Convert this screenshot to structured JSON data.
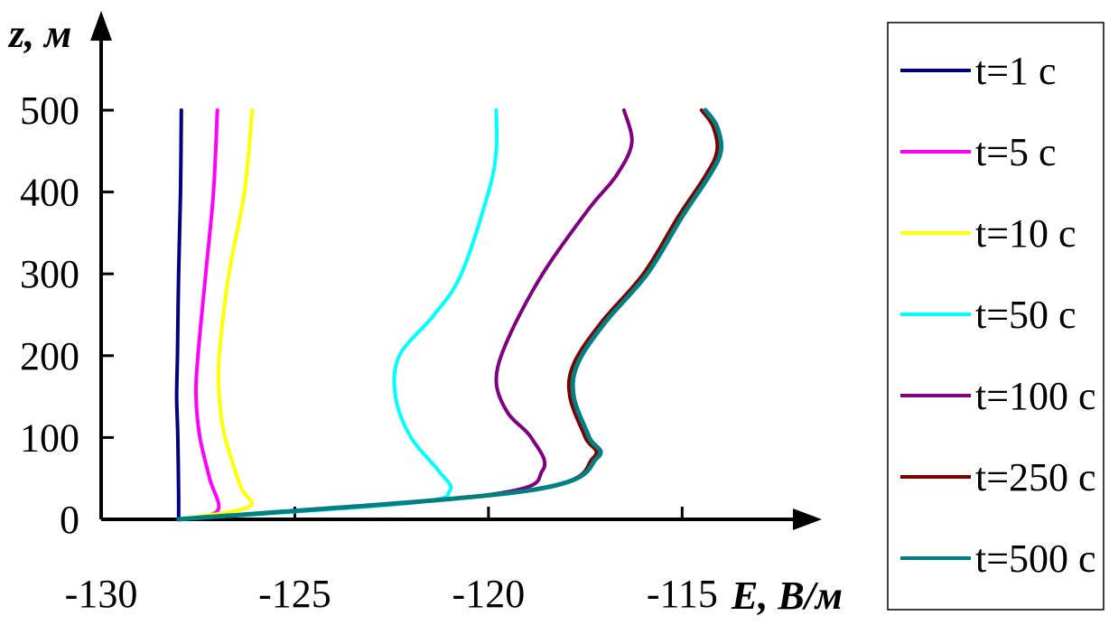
{
  "chart_data": {
    "type": "line",
    "title": "",
    "xlabel": "E, В/м",
    "ylabel": "z, м",
    "xlim": [
      -130,
      -112
    ],
    "ylim": [
      0,
      500
    ],
    "xticks": [
      "-130",
      "-125",
      "-120",
      "-115"
    ],
    "yticks": [
      "0",
      "100",
      "200",
      "300",
      "400",
      "500"
    ],
    "grid": false,
    "legend_position": "right",
    "series": [
      {
        "name": "t=1 с",
        "color": "#000080",
        "points": [
          [
            -128.0,
            0
          ],
          [
            -128.0,
            30
          ],
          [
            -128.02,
            100
          ],
          [
            -128.05,
            150
          ],
          [
            -128.03,
            200
          ],
          [
            -128.0,
            300
          ],
          [
            -127.95,
            400
          ],
          [
            -127.93,
            500
          ]
        ]
      },
      {
        "name": "t=5 с",
        "color": "#ff00ff",
        "points": [
          [
            -128.0,
            0
          ],
          [
            -127.0,
            10
          ],
          [
            -127.2,
            50
          ],
          [
            -127.45,
            100
          ],
          [
            -127.55,
            150
          ],
          [
            -127.5,
            200
          ],
          [
            -127.3,
            300
          ],
          [
            -127.1,
            400
          ],
          [
            -127.0,
            500
          ]
        ]
      },
      {
        "name": "t=10 с",
        "color": "#ffff00",
        "points": [
          [
            -128.0,
            0
          ],
          [
            -126.2,
            15
          ],
          [
            -126.4,
            40
          ],
          [
            -126.8,
            100
          ],
          [
            -126.95,
            150
          ],
          [
            -126.95,
            200
          ],
          [
            -126.7,
            300
          ],
          [
            -126.3,
            400
          ],
          [
            -126.1,
            500
          ]
        ]
      },
      {
        "name": "t=50 с",
        "color": "#00ffff",
        "points": [
          [
            -128.0,
            0
          ],
          [
            -122.0,
            20
          ],
          [
            -121.0,
            35
          ],
          [
            -121.3,
            60
          ],
          [
            -122.0,
            100
          ],
          [
            -122.4,
            150
          ],
          [
            -122.3,
            200
          ],
          [
            -121.4,
            250
          ],
          [
            -120.7,
            300
          ],
          [
            -120.0,
            400
          ],
          [
            -119.8,
            450
          ],
          [
            -119.8,
            500
          ]
        ]
      },
      {
        "name": "t=100 с",
        "color": "#800080",
        "points": [
          [
            -128.0,
            0
          ],
          [
            -120.0,
            30
          ],
          [
            -118.6,
            60
          ],
          [
            -118.9,
            100
          ],
          [
            -119.5,
            130
          ],
          [
            -119.8,
            170
          ],
          [
            -119.5,
            220
          ],
          [
            -118.6,
            300
          ],
          [
            -117.4,
            380
          ],
          [
            -116.7,
            420
          ],
          [
            -116.3,
            460
          ],
          [
            -116.5,
            500
          ]
        ]
      },
      {
        "name": "t=250 с",
        "color": "#800000",
        "points": [
          [
            -128.0,
            0
          ],
          [
            -119.0,
            35
          ],
          [
            -117.3,
            75
          ],
          [
            -117.5,
            100
          ],
          [
            -117.9,
            150
          ],
          [
            -117.8,
            190
          ],
          [
            -117.1,
            240
          ],
          [
            -116.0,
            300
          ],
          [
            -115.1,
            370
          ],
          [
            -114.4,
            420
          ],
          [
            -114.1,
            450
          ],
          [
            -114.2,
            480
          ],
          [
            -114.5,
            500
          ]
        ]
      },
      {
        "name": "t=500 с",
        "color": "#008080",
        "points": [
          [
            -128.0,
            0
          ],
          [
            -119.0,
            35
          ],
          [
            -117.2,
            75
          ],
          [
            -117.4,
            100
          ],
          [
            -117.8,
            150
          ],
          [
            -117.7,
            190
          ],
          [
            -117.0,
            240
          ],
          [
            -115.9,
            300
          ],
          [
            -115.0,
            370
          ],
          [
            -114.3,
            420
          ],
          [
            -114.0,
            450
          ],
          [
            -114.1,
            480
          ],
          [
            -114.4,
            500
          ]
        ]
      }
    ]
  }
}
